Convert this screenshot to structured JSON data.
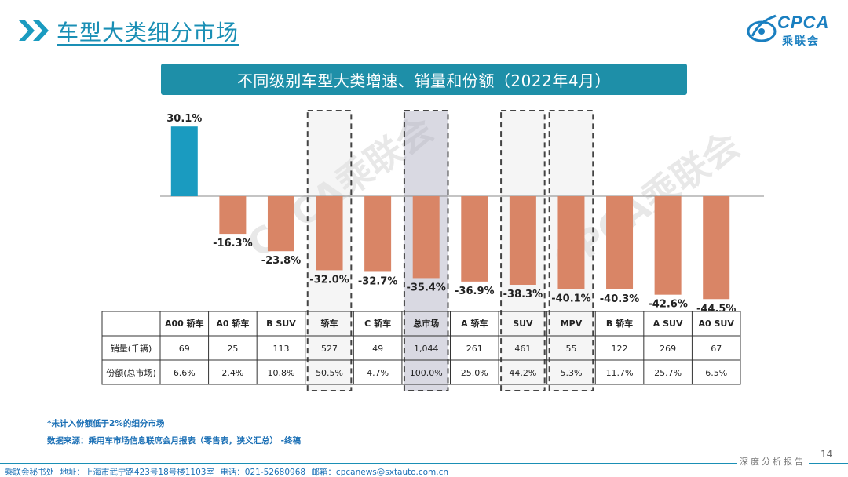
{
  "header": {
    "title": "车型大类细分市场",
    "logo_text": "CPCA",
    "logo_cn": "乘联会"
  },
  "banner": {
    "title": "不同级别车型大类增速、销量和份额（2022年4月）"
  },
  "chart_data": {
    "type": "bar",
    "title": "不同级别车型大类增速、销量和份额（2022年4月）",
    "categories": [
      "A00 轿车",
      "A0 轿车",
      "B SUV",
      "轿车",
      "C 轿车",
      "总市场",
      "A 轿车",
      "SUV",
      "MPV",
      "B 轿车",
      "A SUV",
      "A0 SUV"
    ],
    "values": [
      30.1,
      -16.3,
      -23.8,
      -32.0,
      -32.7,
      -35.4,
      -36.9,
      -38.3,
      -40.1,
      -40.3,
      -42.6,
      -44.5
    ],
    "value_labels": [
      "30.1%",
      "-16.3%",
      "-23.8%",
      "-32.0%",
      "-32.7%",
      "-35.4%",
      "-36.9%",
      "-38.3%",
      "-40.1%",
      "-40.3%",
      "-42.6%",
      "-44.5%"
    ],
    "highlighted": [
      3,
      5,
      7,
      8
    ],
    "positive_color": "#1a9bc0",
    "negative_color": "#d98566",
    "ylim": [
      -45,
      35
    ],
    "grid": false,
    "table": {
      "row_labels": [
        "销量(千辆)",
        "份额(总市场)"
      ],
      "sales": [
        "69",
        "25",
        "113",
        "527",
        "49",
        "1,044",
        "261",
        "461",
        "55",
        "122",
        "269",
        "67"
      ],
      "share": [
        "6.6%",
        "2.4%",
        "10.8%",
        "50.5%",
        "4.7%",
        "100.0%",
        "25.0%",
        "44.2%",
        "5.3%",
        "11.7%",
        "25.7%",
        "6.5%"
      ]
    }
  },
  "watermark": "CPCA乘联会",
  "footnotes": {
    "note1": "*未计入份额低于2%的细分市场",
    "note2": "数据来源：乘用车市场信息联席会月报表（零售表，狭义汇总） -终稿"
  },
  "page_number": "14",
  "tagline": "深度分析报告",
  "footer": {
    "org": "乘联会秘书处",
    "address": "地址：上海市武宁路423号18号楼1103室",
    "phone": "电话：021-52680968",
    "email": "邮箱：cpcanews@sxtauto.com.cn"
  }
}
